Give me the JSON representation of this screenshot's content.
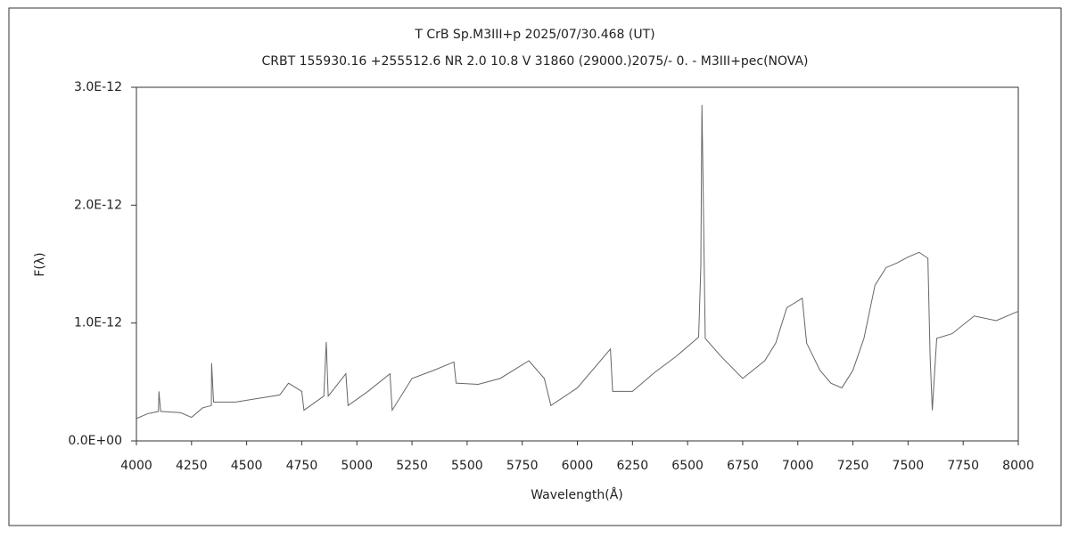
{
  "chart_data": {
    "type": "line",
    "title": "T CrB    Sp.M3III+p    2025/07/30.468 (UT)",
    "subtitle": "CRBT 155930.16 +255512.6 NR 2.0 10.8 V 31860 (29000.)2075/-  0. - M3III+pec(NOVA)",
    "x_label": "Wavelength(Å)",
    "y_label": "F(λ)",
    "xlim": [
      4000,
      8000
    ],
    "ylim": [
      0,
      3e-12
    ],
    "xticks": [
      4000,
      4250,
      4500,
      4750,
      5000,
      5250,
      5500,
      5750,
      6000,
      6250,
      6500,
      6750,
      7000,
      7250,
      7500,
      7750,
      8000
    ],
    "yticks": [
      {
        "value": 0,
        "label": "0.0E+00"
      },
      {
        "value": 1e-12,
        "label": "1.0E-12"
      },
      {
        "value": 2e-12,
        "label": "2.0E-12"
      },
      {
        "value": 3e-12,
        "label": "3.0E-12"
      }
    ],
    "grid": false,
    "x": [
      4000,
      4050,
      4100,
      4102,
      4110,
      4200,
      4250,
      4300,
      4340,
      4341,
      4350,
      4450,
      4550,
      4650,
      4690,
      4750,
      4760,
      4850,
      4861,
      4870,
      4950,
      4960,
      5050,
      5150,
      5160,
      5250,
      5350,
      5440,
      5450,
      5550,
      5650,
      5780,
      5850,
      5880,
      6000,
      6150,
      6160,
      6250,
      6350,
      6450,
      6550,
      6560,
      6565,
      6570,
      6580,
      6650,
      6750,
      6850,
      6900,
      6950,
      7020,
      7040,
      7100,
      7150,
      7200,
      7250,
      7300,
      7350,
      7400,
      7450,
      7500,
      7550,
      7590,
      7600,
      7610,
      7630,
      7700,
      7800,
      7900,
      8000
    ],
    "series": [
      {
        "color": "#666666",
        "values": [
          1.9e-13,
          2.3e-13,
          2.5e-13,
          4.2e-13,
          2.5e-13,
          2.4e-13,
          2e-13,
          2.8e-13,
          3e-13,
          6.6e-13,
          3.3e-13,
          3.3e-13,
          3.6e-13,
          3.9e-13,
          4.9e-13,
          4.2e-13,
          2.6e-13,
          3.8e-13,
          8.4e-13,
          3.8e-13,
          5.7e-13,
          3e-13,
          4.2e-13,
          5.7e-13,
          2.6e-13,
          5.3e-13,
          6e-13,
          6.7e-13,
          4.9e-13,
          4.8e-13,
          5.3e-13,
          6.8e-13,
          5.3e-13,
          3e-13,
          4.5e-13,
          7.8e-13,
          4.2e-13,
          4.2e-13,
          5.8e-13,
          7.2e-13,
          8.8e-13,
          1.47e-12,
          2.85e-12,
          2.23e-12,
          8.7e-13,
          7.2e-13,
          5.3e-13,
          6.8e-13,
          8.3e-13,
          1.13e-12,
          1.21e-12,
          8.3e-13,
          6e-13,
          4.9e-13,
          4.5e-13,
          6e-13,
          8.7e-13,
          1.32e-12,
          1.47e-12,
          1.51e-12,
          1.56e-12,
          1.6e-12,
          1.55e-12,
          7.2e-13,
          2.6e-13,
          8.7e-13,
          9.1e-13,
          1.06e-12,
          1.02e-12,
          1.1e-12
        ]
      }
    ]
  }
}
